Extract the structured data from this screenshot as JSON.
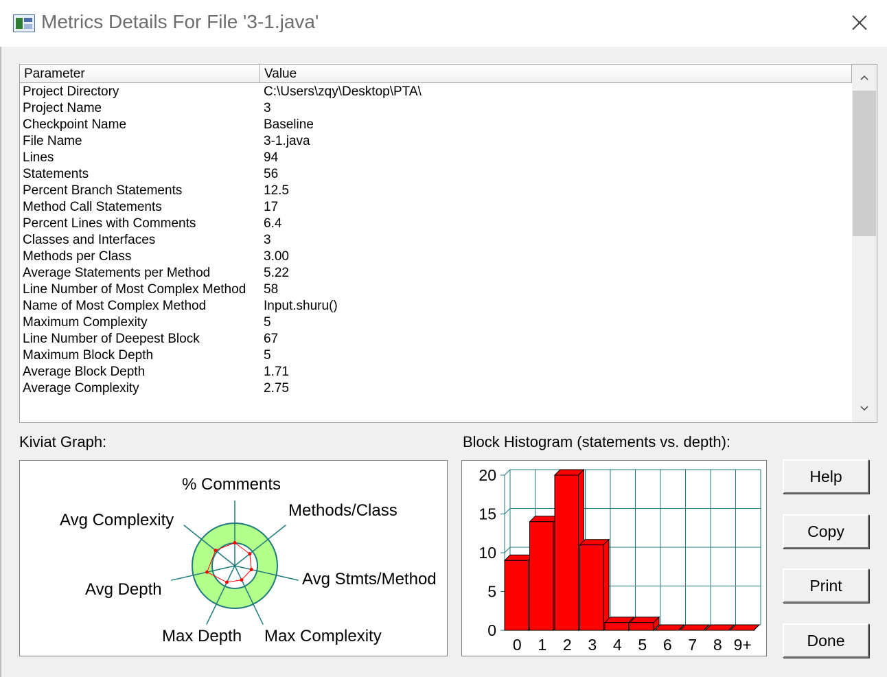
{
  "window": {
    "title": "Metrics Details For File '3-1.java'",
    "icon": "metrics-app-icon",
    "close_icon": "close-icon"
  },
  "table": {
    "columns": [
      "Parameter",
      "Value"
    ],
    "rows": [
      {
        "param": "Project Directory",
        "value": "C:\\Users\\zqy\\Desktop\\PTA\\"
      },
      {
        "param": "Project Name",
        "value": "3"
      },
      {
        "param": "Checkpoint Name",
        "value": "Baseline"
      },
      {
        "param": "File Name",
        "value": "3-1.java"
      },
      {
        "param": "Lines",
        "value": "94"
      },
      {
        "param": "Statements",
        "value": "56"
      },
      {
        "param": "Percent Branch Statements",
        "value": "12.5"
      },
      {
        "param": "Method Call Statements",
        "value": "17"
      },
      {
        "param": "Percent Lines with Comments",
        "value": "6.4"
      },
      {
        "param": "Classes and Interfaces",
        "value": "3"
      },
      {
        "param": "Methods per Class",
        "value": "3.00"
      },
      {
        "param": "Average Statements per Method",
        "value": "5.22"
      },
      {
        "param": "Line Number of Most Complex Method",
        "value": "58"
      },
      {
        "param": "Name of Most Complex Method",
        "value": "Input.shuru()"
      },
      {
        "param": "Maximum Complexity",
        "value": "5"
      },
      {
        "param": "Line Number of Deepest Block",
        "value": "67"
      },
      {
        "param": "Maximum Block Depth",
        "value": "5"
      },
      {
        "param": "Average Block Depth",
        "value": "1.71"
      },
      {
        "param": "Average Complexity",
        "value": "2.75"
      }
    ]
  },
  "kiviat": {
    "label": "Kiviat Graph:",
    "axes": [
      "% Comments",
      "Methods/Class",
      "Avg Stmts/Method",
      "Max Complexity",
      "Max Depth",
      "Avg Depth",
      "Avg Complexity"
    ],
    "values": [
      0.54,
      0.45,
      0.4,
      0.37,
      0.43,
      0.67,
      0.58
    ],
    "colors": {
      "ring": "#b3ff8c",
      "axis": "#1f7a7a",
      "line": "#ff0000"
    }
  },
  "histogram": {
    "label": "Block Histogram (statements vs. depth):",
    "chart_data": {
      "type": "bar",
      "categories": [
        "0",
        "1",
        "2",
        "3",
        "4",
        "5",
        "6",
        "7",
        "8",
        "9+"
      ],
      "values": [
        9,
        14,
        20,
        11,
        1,
        1,
        0,
        0,
        0,
        0
      ],
      "ylim": [
        0,
        20
      ],
      "yticks": [
        "0",
        "5",
        "10",
        "15",
        "20"
      ],
      "grid": true,
      "bar_color": "#ff0000"
    }
  },
  "buttons": {
    "help": "Help",
    "copy": "Copy",
    "print": "Print",
    "done": "Done"
  }
}
